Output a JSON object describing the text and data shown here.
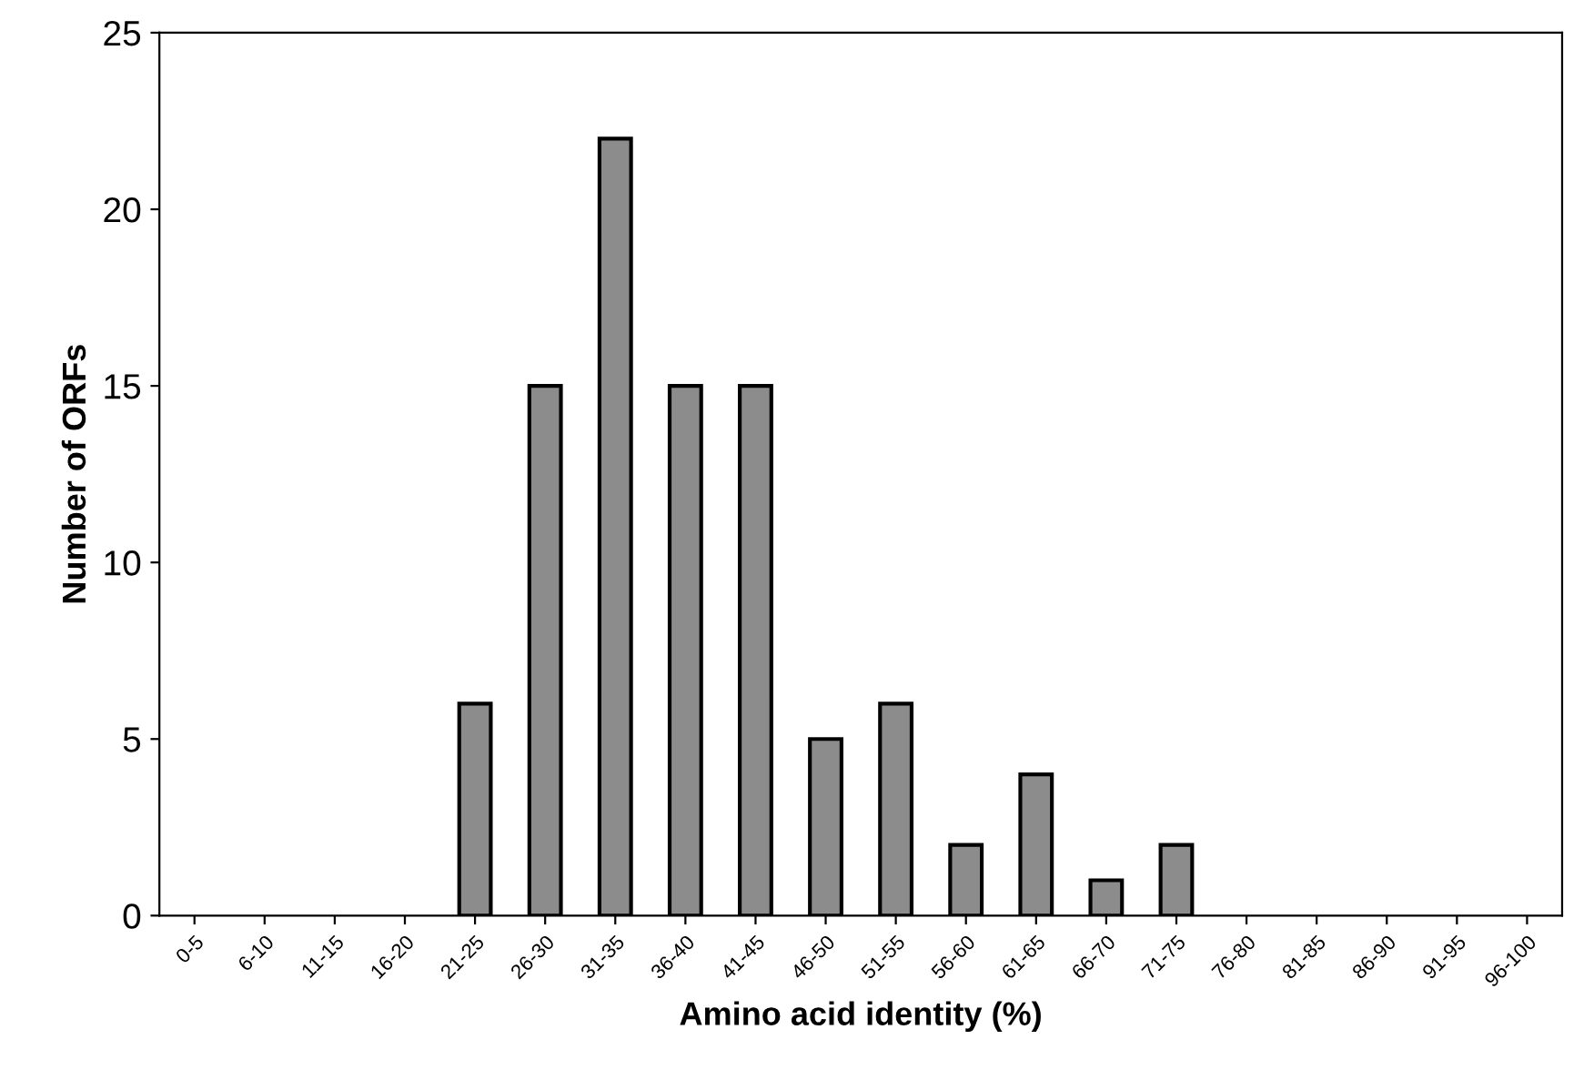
{
  "chart_data": {
    "type": "bar",
    "xlabel": "Amino acid identity (%)",
    "ylabel": "Number of ORFs",
    "categories": [
      "0-5",
      "6-10",
      "11-15",
      "16-20",
      "21-25",
      "26-30",
      "31-35",
      "36-40",
      "41-45",
      "46-50",
      "51-55",
      "56-60",
      "61-65",
      "66-70",
      "71-75",
      "76-80",
      "81-85",
      "86-90",
      "91-95",
      "96-100"
    ],
    "values": [
      0,
      0,
      0,
      0,
      6,
      15,
      22,
      15,
      15,
      5,
      6,
      2,
      4,
      1,
      2,
      0,
      0,
      0,
      0,
      0
    ],
    "color": "#8c8c8c",
    "ylim": [
      0,
      25
    ],
    "yticks": [
      0,
      5,
      10,
      15,
      20,
      25
    ],
    "grid": false,
    "legend": false
  }
}
